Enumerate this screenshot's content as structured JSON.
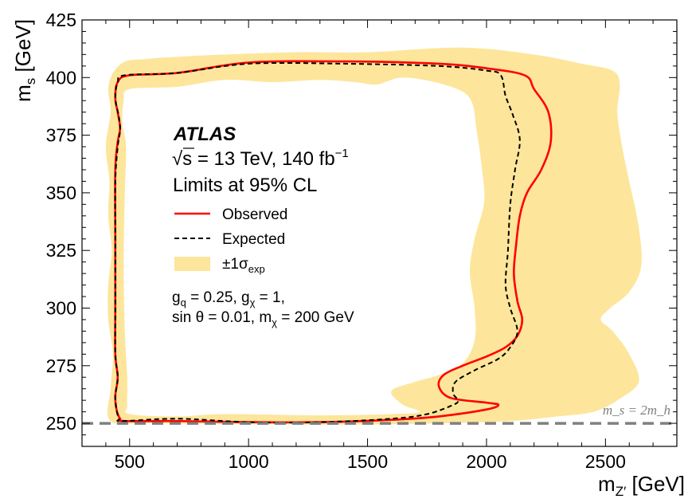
{
  "chart_data": {
    "type": "line",
    "xlabel": "m",
    "xlabel_sub": "Z′",
    "xlabel_unit": "[GeV]",
    "ylabel": "m",
    "ylabel_sub": "s",
    "ylabel_unit": "[GeV]",
    "xlim": [
      300,
      2800
    ],
    "ylim": [
      240,
      425
    ],
    "xticks": [
      500,
      1000,
      1500,
      2000,
      2500
    ],
    "yticks": [
      250,
      275,
      300,
      325,
      350,
      375,
      400,
      425
    ],
    "experiment": "ATLAS",
    "energy_label": "√s = 13 TeV, 140 fb",
    "energy_sup": "−1",
    "cl_label": "Limits at 95% CL",
    "params_line1": "g",
    "params": {
      "line1_a": "g",
      "line1_a_sub": "q",
      "line1_b": " = 0.25, g",
      "line1_b_sub": "χ",
      "line1_c": " = 1,",
      "line2_a": "sin θ = 0.01, m",
      "line2_a_sub": "χ",
      "line2_b": " = 200 GeV"
    },
    "threshold": {
      "label": "m_s = 2m_h",
      "y": 250,
      "color": "#808080"
    },
    "legend": {
      "observed": "Observed",
      "expected": "Expected",
      "band": "±1σ",
      "band_sub": "exp"
    },
    "colors": {
      "observed": "#ff0000",
      "expected": "#000000",
      "band": "#fde69b"
    },
    "series": [
      {
        "name": "Observed",
        "style": "solid",
        "points": [
          [
            480,
            251
          ],
          [
            700,
            251
          ],
          [
            1000,
            250.5
          ],
          [
            1300,
            250.5
          ],
          [
            1600,
            251.5
          ],
          [
            1800,
            253
          ],
          [
            2000,
            256
          ],
          [
            2050,
            258
          ],
          [
            2000,
            259
          ],
          [
            1850,
            261
          ],
          [
            1800,
            266
          ],
          [
            1820,
            271
          ],
          [
            1900,
            275
          ],
          [
            2000,
            279
          ],
          [
            2080,
            283
          ],
          [
            2130,
            288
          ],
          [
            2150,
            295
          ],
          [
            2130,
            303
          ],
          [
            2115,
            315
          ],
          [
            2125,
            328
          ],
          [
            2140,
            340
          ],
          [
            2170,
            350
          ],
          [
            2230,
            360
          ],
          [
            2270,
            372
          ],
          [
            2260,
            385
          ],
          [
            2200,
            395
          ],
          [
            2160,
            401
          ],
          [
            2000,
            404
          ],
          [
            1800,
            406
          ],
          [
            1400,
            407
          ],
          [
            1000,
            406.5
          ],
          [
            700,
            402
          ],
          [
            500,
            401
          ],
          [
            450,
            398
          ],
          [
            440,
            391
          ],
          [
            450,
            385
          ],
          [
            460,
            378
          ],
          [
            450,
            372
          ],
          [
            440,
            360
          ],
          [
            440,
            330
          ],
          [
            440,
            300
          ],
          [
            440,
            280
          ],
          [
            450,
            270
          ],
          [
            440,
            262
          ],
          [
            445,
            256
          ],
          [
            460,
            252
          ],
          [
            480,
            251
          ]
        ]
      },
      {
        "name": "Expected",
        "style": "dashed",
        "points": [
          [
            470,
            251
          ],
          [
            700,
            252
          ],
          [
            1000,
            250.5
          ],
          [
            1300,
            250.5
          ],
          [
            1600,
            252
          ],
          [
            1750,
            254
          ],
          [
            1860,
            258
          ],
          [
            1880,
            260
          ],
          [
            1860,
            263
          ],
          [
            1870,
            268
          ],
          [
            1950,
            273
          ],
          [
            2050,
            278
          ],
          [
            2100,
            283
          ],
          [
            2130,
            290
          ],
          [
            2100,
            300
          ],
          [
            2080,
            310
          ],
          [
            2090,
            325
          ],
          [
            2100,
            345
          ],
          [
            2120,
            360
          ],
          [
            2140,
            373
          ],
          [
            2110,
            384
          ],
          [
            2080,
            392
          ],
          [
            2060,
            401
          ],
          [
            2000,
            403
          ],
          [
            1800,
            405
          ],
          [
            1400,
            406
          ],
          [
            1000,
            406
          ],
          [
            700,
            402
          ],
          [
            480,
            401
          ],
          [
            450,
            398
          ],
          [
            440,
            391
          ],
          [
            455,
            383
          ],
          [
            460,
            377
          ],
          [
            450,
            370
          ],
          [
            440,
            355
          ],
          [
            440,
            330
          ],
          [
            440,
            300
          ],
          [
            440,
            280
          ],
          [
            450,
            270
          ],
          [
            440,
            262
          ],
          [
            445,
            256
          ],
          [
            455,
            252
          ],
          [
            470,
            251
          ]
        ]
      }
    ],
    "band": {
      "outer": [
        [
          420,
          251
        ],
        [
          600,
          250
        ],
        [
          1100,
          249.5
        ],
        [
          1500,
          249.5
        ],
        [
          1800,
          250
        ],
        [
          2100,
          251
        ],
        [
          2300,
          253
        ],
        [
          2450,
          255
        ],
        [
          2550,
          260
        ],
        [
          2640,
          268
        ],
        [
          2600,
          280
        ],
        [
          2530,
          290
        ],
        [
          2480,
          295
        ],
        [
          2520,
          300
        ],
        [
          2600,
          307
        ],
        [
          2650,
          318
        ],
        [
          2640,
          335
        ],
        [
          2600,
          355
        ],
        [
          2570,
          370
        ],
        [
          2550,
          385
        ],
        [
          2560,
          397
        ],
        [
          2530,
          403
        ],
        [
          2400,
          406
        ],
        [
          2200,
          410
        ],
        [
          1900,
          413
        ],
        [
          1500,
          411
        ],
        [
          1200,
          411
        ],
        [
          900,
          410
        ],
        [
          700,
          409
        ],
        [
          560,
          408
        ],
        [
          480,
          407
        ],
        [
          430,
          402
        ],
        [
          410,
          395
        ],
        [
          420,
          385
        ],
        [
          400,
          370
        ],
        [
          415,
          355
        ],
        [
          410,
          340
        ],
        [
          425,
          325
        ],
        [
          410,
          310
        ],
        [
          410,
          295
        ],
        [
          430,
          280
        ],
        [
          420,
          265
        ],
        [
          420,
          251
        ]
      ],
      "inner": [
        [
          500,
          254
        ],
        [
          700,
          253
        ],
        [
          900,
          254
        ],
        [
          1300,
          253.5
        ],
        [
          1600,
          254
        ],
        [
          1720,
          255
        ],
        [
          1650,
          258
        ],
        [
          1600,
          264
        ],
        [
          1700,
          268
        ],
        [
          1800,
          271
        ],
        [
          1900,
          276
        ],
        [
          1950,
          286
        ],
        [
          1950,
          300
        ],
        [
          1930,
          316
        ],
        [
          1950,
          330
        ],
        [
          1990,
          346
        ],
        [
          1980,
          361
        ],
        [
          1960,
          376
        ],
        [
          1930,
          391
        ],
        [
          1820,
          397
        ],
        [
          1650,
          400
        ],
        [
          1540,
          397
        ],
        [
          1450,
          398
        ],
        [
          1300,
          399
        ],
        [
          1100,
          398
        ],
        [
          900,
          399
        ],
        [
          700,
          396
        ],
        [
          500,
          395
        ],
        [
          475,
          390
        ],
        [
          470,
          380
        ],
        [
          485,
          370
        ],
        [
          480,
          350
        ],
        [
          475,
          320
        ],
        [
          480,
          290
        ],
        [
          490,
          270
        ],
        [
          490,
          258
        ],
        [
          500,
          254
        ]
      ],
      "inner_outside": [
        [
          1800,
          361
        ],
        [
          1750,
          350
        ],
        [
          1720,
          340
        ],
        [
          1700,
          330
        ],
        [
          1690,
          315
        ],
        [
          1710,
          302
        ],
        [
          1740,
          290
        ],
        [
          1700,
          280
        ],
        [
          1600,
          276
        ],
        [
          1570,
          275
        ],
        [
          1560,
          264
        ],
        [
          1630,
          262
        ],
        [
          1700,
          256
        ]
      ]
    }
  }
}
